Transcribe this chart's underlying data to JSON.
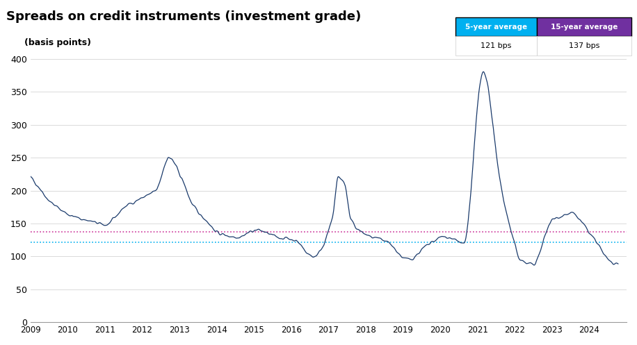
{
  "title": "Spreads on credit instruments (investment grade)",
  "ylabel": "(basis points)",
  "five_year_avg": 121,
  "fifteen_year_avg": 137,
  "five_year_color": "#00b0f0",
  "fifteen_year_color": "#7030a0",
  "line_color": "#1a3a6b",
  "avg_line_color_5yr": "#00b0f0",
  "avg_line_color_15yr": "#cc3399",
  "ylim": [
    0,
    410
  ],
  "yticks": [
    0,
    50,
    100,
    150,
    200,
    250,
    300,
    350,
    400
  ],
  "background_color": "#ffffff",
  "five_year_label": "5-year average",
  "fifteen_year_label": "15-year average",
  "five_year_bps": "121 bps",
  "fifteen_year_bps": "137 bps"
}
